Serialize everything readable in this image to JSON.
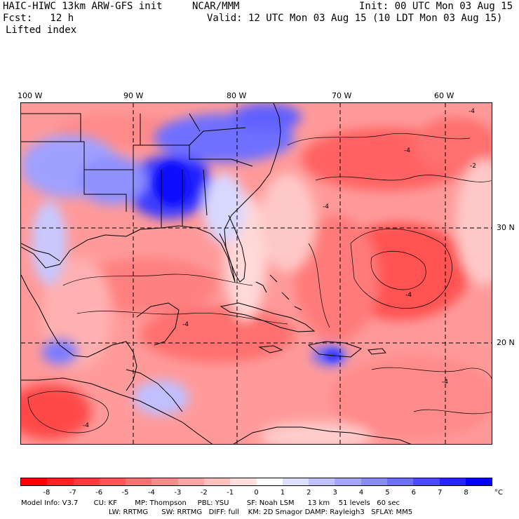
{
  "header": {
    "model_title": "HAIC-HIWC 13km ARW-GFS init",
    "center": "NCAR/MMM",
    "init": "Init: 00 UTC Mon 03 Aug 15",
    "fcst": "Fcst:   12 h",
    "valid": "Valid: 12 UTC Mon 03 Aug 15 (10 LDT Mon 03 Aug 15)",
    "field": "Lifted index"
  },
  "map": {
    "lon_labels": [
      "100 W",
      "90 W",
      "80 W",
      "70 W",
      "60 W"
    ],
    "lat_labels": [
      "30 N",
      "20 N"
    ],
    "contour_labels": [
      "-4",
      "-4",
      "-2",
      "-4",
      "-4",
      "-4",
      "-4",
      "-4"
    ],
    "colors": {
      "land_outline": "#000000",
      "gridline": "#000000"
    }
  },
  "colorbar": {
    "ticks": [
      "-8",
      "-7",
      "-6",
      "-5",
      "-4",
      "-3",
      "-2",
      "-1",
      "0",
      "1",
      "2",
      "3",
      "4",
      "5",
      "6",
      "7",
      "8"
    ],
    "unit": "°C",
    "colors": [
      "#ff0000",
      "#ff2020",
      "#ff3a3a",
      "#ff5555",
      "#ff7070",
      "#ff8a8a",
      "#ffa5a5",
      "#ffc0c0",
      "#ffdede",
      "#ffffff",
      "#dedeff",
      "#c0c0ff",
      "#a5a5ff",
      "#8a8aff",
      "#6f6fff",
      "#4a4aff",
      "#2525ff",
      "#0000ff"
    ]
  },
  "model_info": {
    "line1": "Model Info: V3.7       CU: KF        MP: Thompson     PBL: YSU        SF: Noah LSM      13 km    51 levels   60 sec",
    "line2": "LW: RRTMG      SW: RRTMG   DIFF: full    KM: 2D Smagor DAMP: Rayleigh3   SFLAY: MM5"
  }
}
